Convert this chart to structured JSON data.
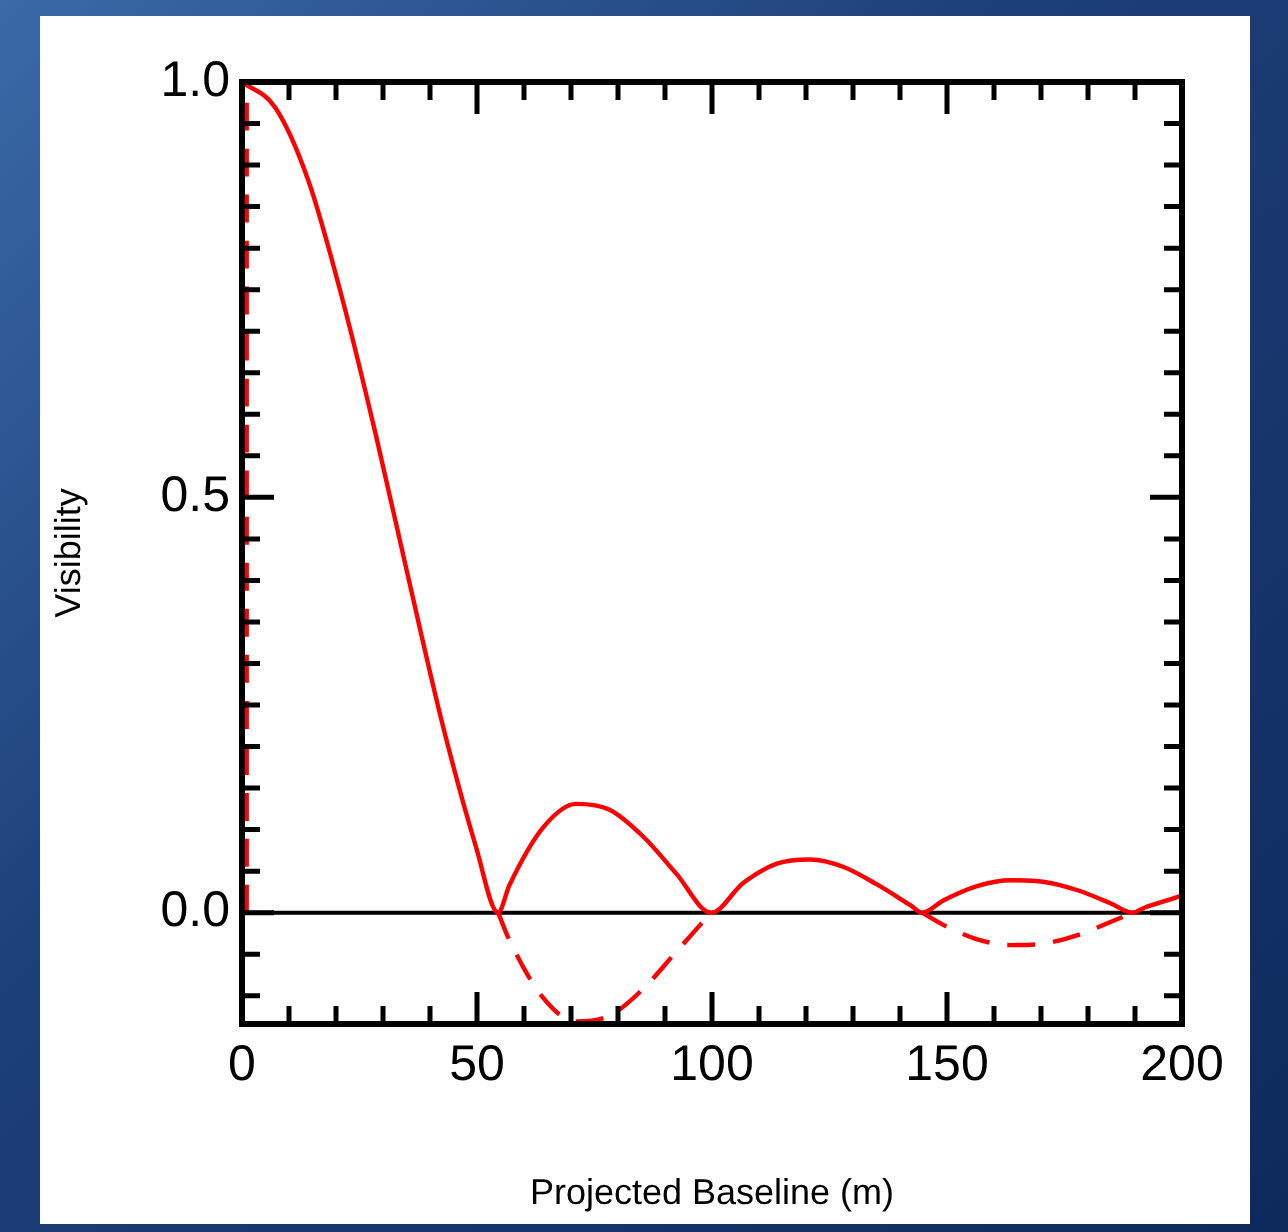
{
  "chart_data": {
    "type": "line",
    "xlabel": "Projected Baseline (m)",
    "ylabel": "Visibility",
    "xlim": [
      0,
      200
    ],
    "ylim": [
      -0.134,
      1
    ],
    "xticks": [
      0,
      {
        "value": 10,
        "label": null
      },
      {
        "value": 20,
        "label": null
      },
      {
        "value": 30,
        "label": null
      },
      {
        "value": 40,
        "label": null
      },
      50,
      {
        "value": 60,
        "label": null
      },
      {
        "value": 70,
        "label": null
      },
      {
        "value": 80,
        "label": null
      },
      {
        "value": 90,
        "label": null
      },
      100,
      {
        "value": 110,
        "label": null
      },
      {
        "value": 120,
        "label": null
      },
      {
        "value": 130,
        "label": null
      },
      {
        "value": 140,
        "label": null
      },
      150,
      {
        "value": 160,
        "label": null
      },
      {
        "value": 170,
        "label": null
      },
      {
        "value": 180,
        "label": null
      },
      {
        "value": 190,
        "label": null
      },
      200
    ],
    "yticks": [
      {
        "value": -0.1,
        "label": null
      },
      {
        "value": -0.05,
        "label": null
      },
      {
        "value": 0,
        "label": "0.0"
      },
      {
        "value": 0.05,
        "label": null
      },
      {
        "value": 0.1,
        "label": null
      },
      {
        "value": 0.15,
        "label": null
      },
      {
        "value": 0.2,
        "label": null
      },
      {
        "value": 0.25,
        "label": null
      },
      {
        "value": 0.3,
        "label": null
      },
      {
        "value": 0.35,
        "label": null
      },
      {
        "value": 0.4,
        "label": null
      },
      {
        "value": 0.45,
        "label": null
      },
      0.5,
      {
        "value": 0.55,
        "label": null
      },
      {
        "value": 0.6,
        "label": null
      },
      {
        "value": 0.65,
        "label": null
      },
      {
        "value": 0.7,
        "label": null
      },
      {
        "value": 0.75,
        "label": null
      },
      {
        "value": 0.8,
        "label": null
      },
      {
        "value": 0.85,
        "label": null
      },
      {
        "value": 0.9,
        "label": null
      },
      {
        "value": 0.95,
        "label": null
      },
      {
        "value": 1,
        "label": "1.0"
      }
    ],
    "marker": "none",
    "legend": false,
    "grid": false,
    "ref_lines": [
      {
        "axis": "y",
        "value": 0,
        "color": "#000000"
      }
    ],
    "series": [
      {
        "color": "#ff0000",
        "line_style": "solid",
        "x": [
          0,
          7.1,
          14.2,
          21.3,
          28.4,
          35.6,
          42.7,
          49.8,
          54.5,
          56.9,
          64,
          71.1,
          78.2,
          85.3,
          92.4,
          99.8,
          106.7,
          113.8,
          120.9,
          128,
          135.1,
          142.2,
          144.7,
          149.3,
          156.4,
          163.6,
          170.7,
          177.8,
          184.9,
          189.5,
          192,
          199.1,
          200
        ],
        "values": [
          1,
          0.969,
          0.88,
          0.74,
          0.577,
          0.398,
          0.226,
          0.079,
          0,
          0.033,
          0.102,
          0.131,
          0.124,
          0.092,
          0.047,
          0,
          0.036,
          0.059,
          0.064,
          0.055,
          0.034,
          0.009,
          0,
          0.015,
          0.032,
          0.039,
          0.037,
          0.027,
          0.011,
          0,
          0.006,
          0.019,
          0.021
        ]
      },
      {
        "color": "#ff0000",
        "line_style": "dashed",
        "x": [
          1,
          1,
          27,
          54.5,
          56.9,
          64,
          71.1,
          78.2,
          85.3,
          92.4,
          99.8,
          120,
          144.7,
          149.3,
          156.4,
          163.6,
          170.7,
          177.8,
          184.9,
          189.5
        ],
        "values": [
          0,
          1,
          null,
          0,
          -0.033,
          -0.102,
          -0.131,
          -0.124,
          -0.092,
          -0.047,
          0,
          null,
          0,
          -0.015,
          -0.032,
          -0.039,
          -0.037,
          -0.027,
          -0.011,
          0
        ]
      }
    ]
  }
}
